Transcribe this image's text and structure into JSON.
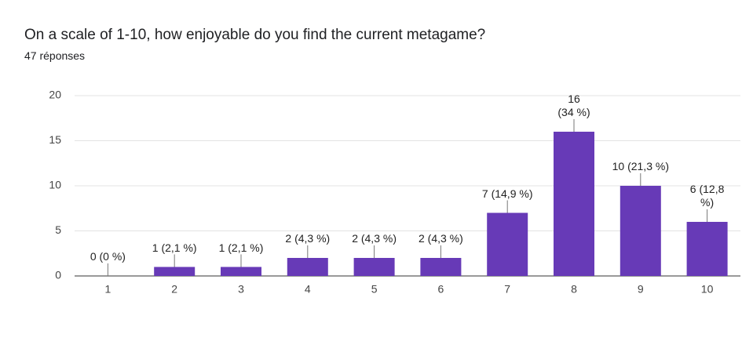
{
  "chart_data": {
    "type": "bar",
    "title": "On a scale of 1-10, how enjoyable do you find the current metagame?",
    "subtitle": "47 réponses",
    "categories": [
      "1",
      "2",
      "3",
      "4",
      "5",
      "6",
      "7",
      "8",
      "9",
      "10"
    ],
    "values": [
      0,
      1,
      1,
      2,
      2,
      2,
      7,
      16,
      10,
      6
    ],
    "value_labels": [
      "0 (0 %)",
      "1 (2,1 %)",
      "1 (2,1 %)",
      "2 (4,3 %)",
      "2 (4,3 %)",
      "2 (4,3 %)",
      "7 (14,9 %)",
      "16\n(34 %)",
      "10 (21,3 %)",
      "6 (12,8 %)"
    ],
    "color": "#673ab7",
    "ylim": [
      0,
      20
    ],
    "yticks": [
      0,
      5,
      10,
      15,
      20
    ],
    "grid": true
  }
}
